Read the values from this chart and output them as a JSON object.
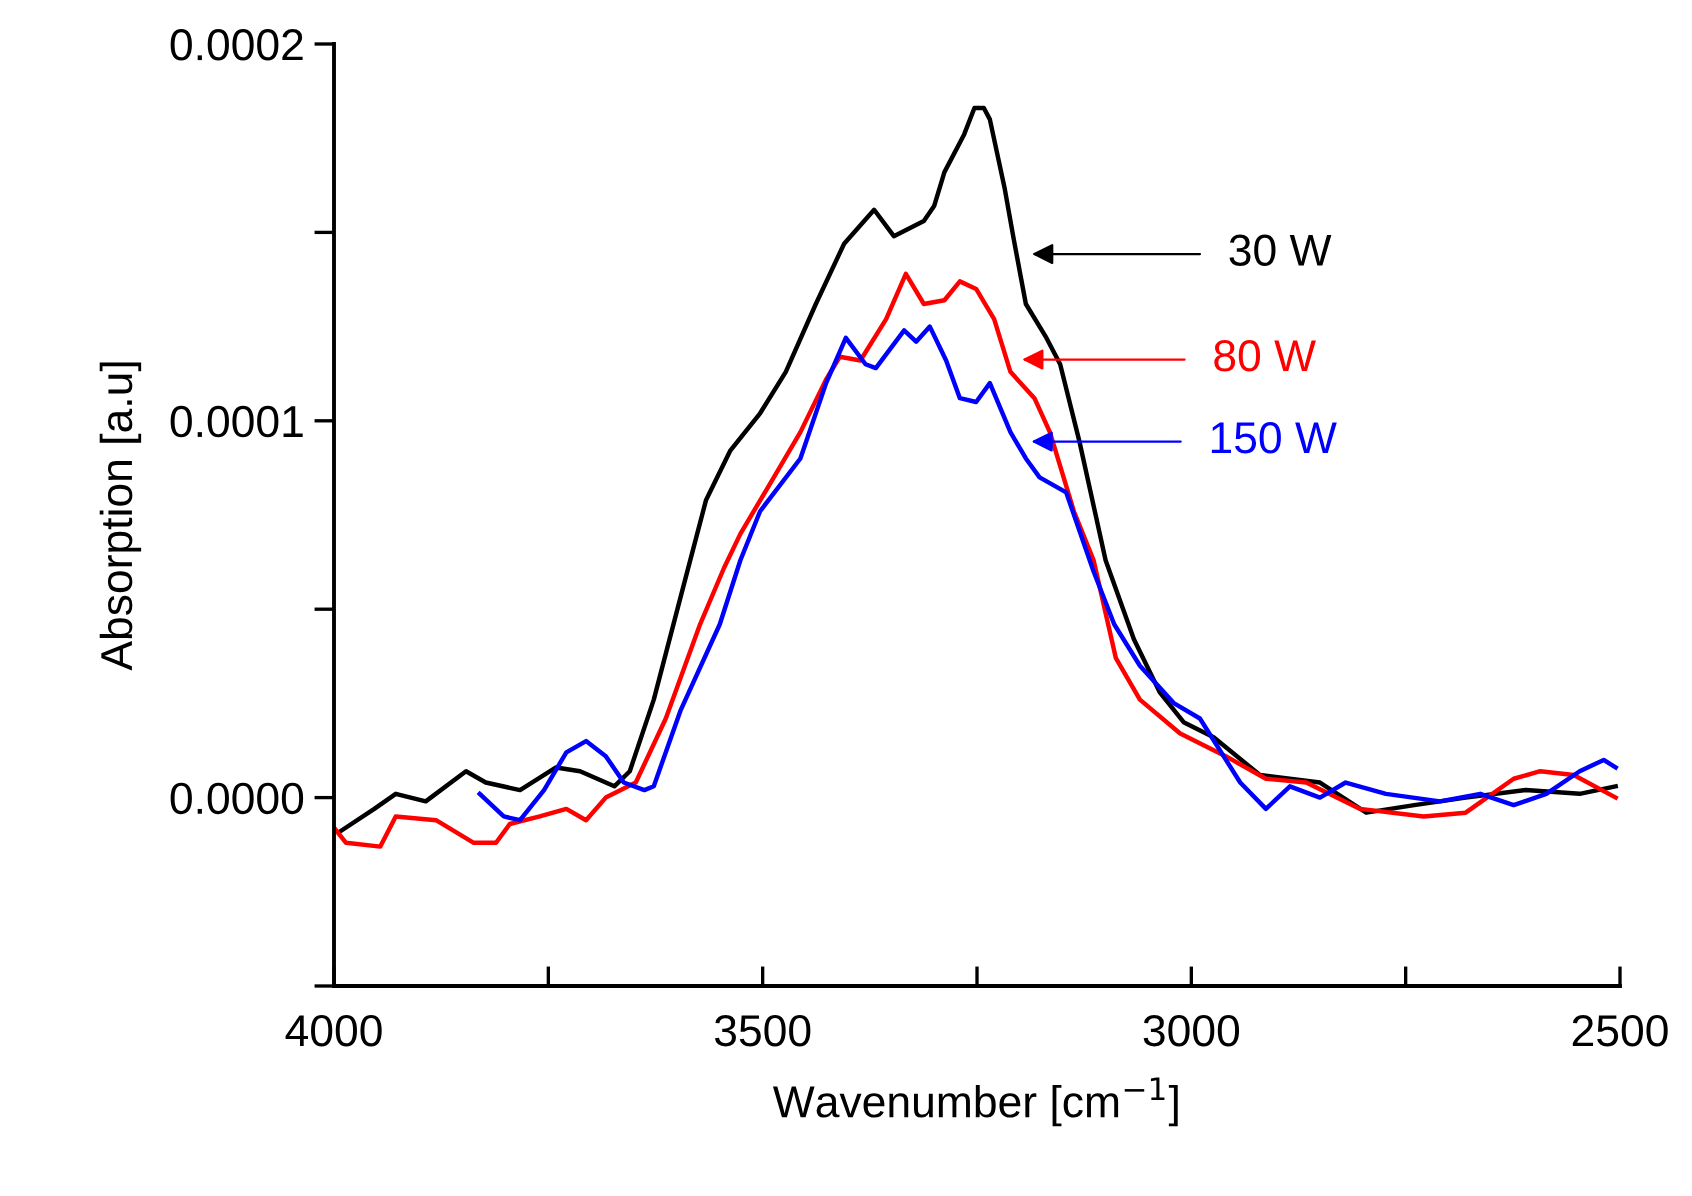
{
  "chart_data": {
    "type": "line",
    "xlabel": "Wavenumber [cm$^{−1}$]",
    "ylabel": "Absorption [a.u]",
    "xlim": [
      4000,
      2500
    ],
    "ylim": [
      -5e-05,
      0.0002
    ],
    "xticks": [
      4000,
      {
        "value": 3750,
        "label": null
      },
      3500,
      {
        "value": 3250,
        "label": null
      },
      3000,
      {
        "value": 2750,
        "label": null
      },
      2500
    ],
    "yticks": [
      {
        "value": -5e-05,
        "label": null
      },
      {
        "value": 0,
        "label": "0.0000"
      },
      {
        "value": 5e-05,
        "label": null
      },
      {
        "value": 0.0001,
        "label": "0.0001"
      },
      {
        "value": 0.00015,
        "label": null
      },
      {
        "value": 0.0002,
        "label": "0.0002"
      }
    ],
    "grid": false,
    "legend": "right",
    "marker": "none",
    "line_style": "solid",
    "series": [
      {
        "name": "30 W",
        "color": "#000000",
        "x": [
          3993,
          3953,
          3928,
          3893,
          3846,
          3823,
          3783,
          3741,
          3713,
          3673,
          3655,
          3627,
          3596,
          3566,
          3538,
          3503,
          3473,
          3438,
          3405,
          3370,
          3347,
          3312,
          3300,
          3288,
          3265,
          3253,
          3242,
          3235,
          3218,
          3207,
          3193,
          3169,
          3153,
          3130,
          3100,
          3067,
          3037,
          3009,
          2974,
          2920,
          2850,
          2796,
          2740,
          2680,
          2610,
          2547,
          2505
        ],
        "values": [
          -9e-06,
          -3e-06,
          1e-06,
          -1e-06,
          7e-06,
          4e-06,
          2e-06,
          8e-06,
          7e-06,
          3e-06,
          7e-06,
          2.6e-05,
          5.3e-05,
          7.9e-05,
          9.2e-05,
          0.000102,
          0.000113,
          0.000131,
          0.000147,
          0.000156,
          0.000149,
          0.000153,
          0.000157,
          0.000166,
          0.000176,
          0.000183,
          0.000183,
          0.00018,
          0.000162,
          0.000148,
          0.000131,
          0.000122,
          0.000115,
          9.4e-05,
          6.3e-05,
          4.2e-05,
          2.8e-05,
          2e-05,
          1.6e-05,
          6e-06,
          4e-06,
          -4e-06,
          -2e-06,
          0,
          2e-06,
          1e-06,
          3e-06
        ]
      },
      {
        "name": "80 W",
        "color": "#ff0000",
        "x": [
          4000,
          3986,
          3946,
          3928,
          3881,
          3837,
          3811,
          3795,
          3760,
          3729,
          3706,
          3683,
          3648,
          3613,
          3573,
          3545,
          3526,
          3487,
          3456,
          3426,
          3410,
          3386,
          3356,
          3333,
          3312,
          3288,
          3270,
          3251,
          3230,
          3211,
          3183,
          3165,
          3137,
          3114,
          3088,
          3060,
          3013,
          2960,
          2913,
          2866,
          2803,
          2729,
          2680,
          2624,
          2593,
          2554,
          2505
        ],
        "values": [
          -8e-06,
          -1.2e-05,
          -1.3e-05,
          -5e-06,
          -6e-06,
          -1.2e-05,
          -1.2e-05,
          -7e-06,
          -5e-06,
          -3e-06,
          -6e-06,
          0,
          4e-06,
          2.1e-05,
          4.6e-05,
          6.1e-05,
          7e-05,
          8.5e-05,
          9.7e-05,
          0.000111,
          0.000117,
          0.000116,
          0.000127,
          0.000139,
          0.000131,
          0.000132,
          0.000137,
          0.000135,
          0.000127,
          0.000113,
          0.000106,
          9.7e-05,
          7.6e-05,
          6.3e-05,
          3.7e-05,
          2.6e-05,
          1.7e-05,
          1.1e-05,
          5e-06,
          4e-06,
          -3e-06,
          -5e-06,
          -4e-06,
          5e-06,
          7e-06,
          6e-06,
          0
        ]
      },
      {
        "name": "150 W",
        "color": "#0000ff",
        "x": [
          3830,
          3802,
          3783,
          3755,
          3729,
          3706,
          3683,
          3662,
          3638,
          3627,
          3596,
          3550,
          3526,
          3503,
          3456,
          3426,
          3403,
          3380,
          3368,
          3335,
          3321,
          3305,
          3286,
          3270,
          3251,
          3235,
          3211,
          3193,
          3177,
          3146,
          3114,
          3090,
          3060,
          3020,
          2990,
          2943,
          2913,
          2885,
          2850,
          2820,
          2773,
          2710,
          2663,
          2624,
          2586,
          2547,
          2519,
          2505
        ],
        "values": [
          1e-06,
          -5e-06,
          -6e-06,
          2e-06,
          1.2e-05,
          1.5e-05,
          1.1e-05,
          4e-06,
          2e-06,
          3e-06,
          2.3e-05,
          4.6e-05,
          6.3e-05,
          7.6e-05,
          9e-05,
          0.00011,
          0.000122,
          0.000115,
          0.000114,
          0.000124,
          0.000121,
          0.000125,
          0.000116,
          0.000106,
          0.000105,
          0.00011,
          9.7e-05,
          9e-05,
          8.5e-05,
          8.1e-05,
          6e-05,
          4.6e-05,
          3.5e-05,
          2.5e-05,
          2.1e-05,
          4e-06,
          -3e-06,
          3e-06,
          0,
          4e-06,
          1e-06,
          -1e-06,
          1e-06,
          -2e-06,
          1e-06,
          7e-06,
          1e-05,
          8e-06
        ]
      }
    ]
  }
}
